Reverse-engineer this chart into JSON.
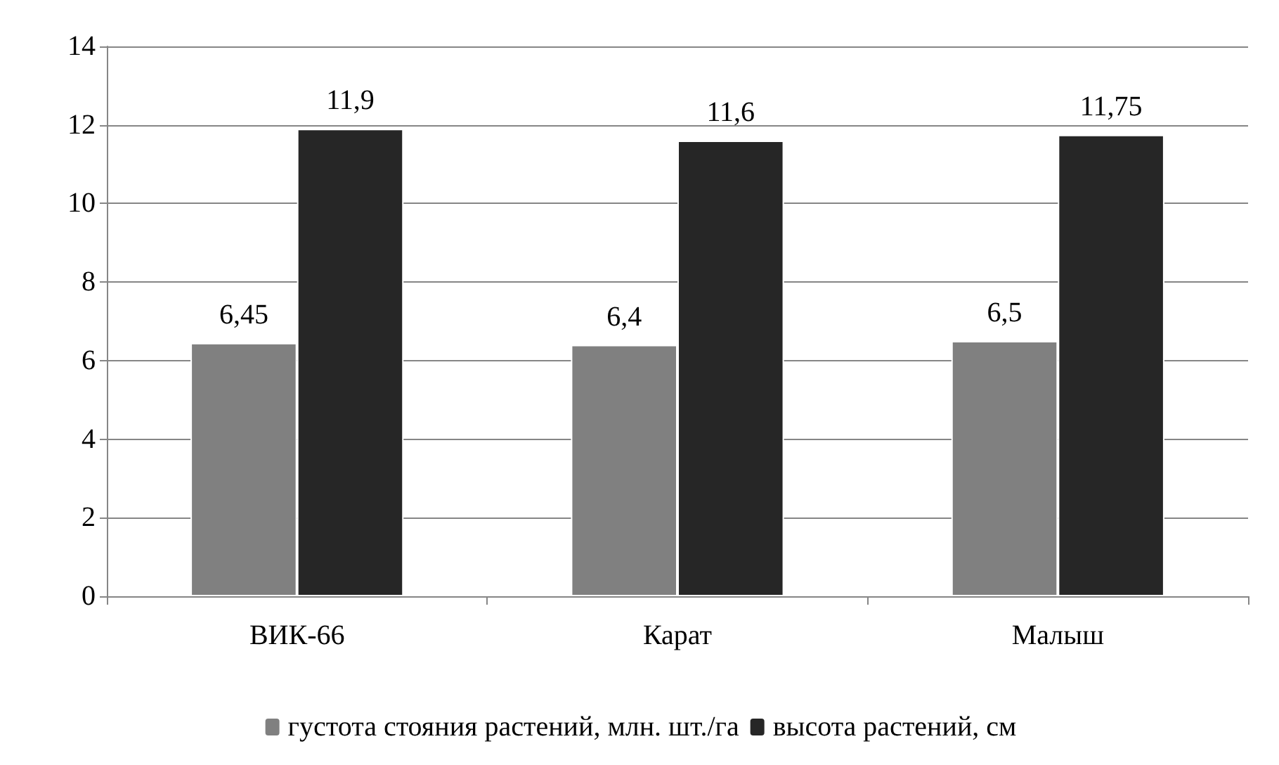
{
  "chart_data": {
    "type": "bar",
    "categories": [
      "ВИК-66",
      "Карат",
      "Малыш"
    ],
    "series": [
      {
        "name": "густота стояния растений, млн. шт./га",
        "color": "#808080",
        "values": [
          6.45,
          6.4,
          6.5
        ],
        "value_labels": [
          "6,45",
          "6,4",
          "6,5"
        ]
      },
      {
        "name": "высота растений, см",
        "color": "#262626",
        "values": [
          11.9,
          11.6,
          11.75
        ],
        "value_labels": [
          "11,9",
          "11,6",
          "11,75"
        ]
      }
    ],
    "ylim": [
      0,
      14
    ],
    "yticks": [
      0,
      2,
      4,
      6,
      8,
      10,
      12,
      14
    ],
    "grid": "y",
    "legend": "bottom"
  }
}
